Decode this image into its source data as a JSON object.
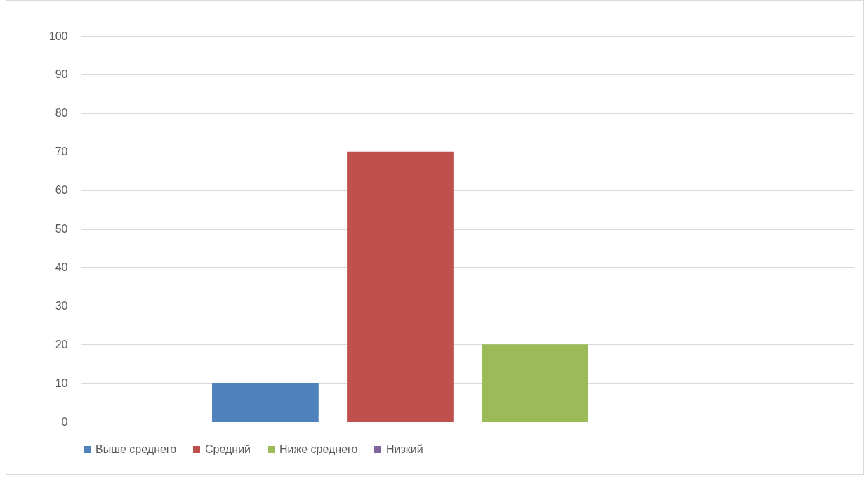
{
  "chart_data": {
    "type": "bar",
    "categories": [
      null
    ],
    "series": [
      {
        "name": "Выше среднего",
        "color": "#4f81bd",
        "values": [
          10
        ]
      },
      {
        "name": "Средний",
        "color": "#c0504d",
        "values": [
          70
        ]
      },
      {
        "name": "Ниже среднего",
        "color": "#9bbb59",
        "values": [
          20
        ]
      },
      {
        "name": "Низкий",
        "color": "#8064a2",
        "values": [
          0
        ]
      }
    ],
    "ylim": [
      0,
      100
    ],
    "yticks": [
      0,
      10,
      20,
      30,
      40,
      50,
      60,
      70,
      80,
      90,
      100
    ],
    "grid": "y",
    "legend": "bottom"
  }
}
